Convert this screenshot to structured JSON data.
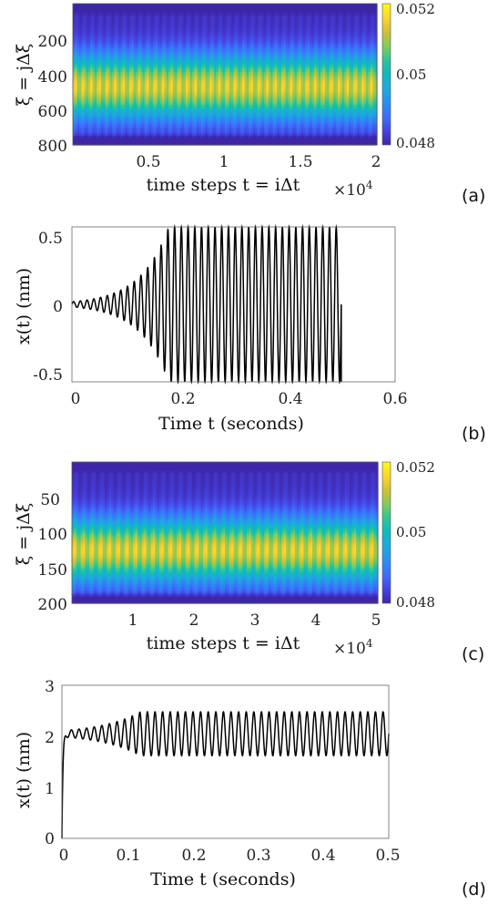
{
  "chart_data": [
    {
      "panel": "(a)",
      "type": "heatmap",
      "xlabel": "time steps t = iΔt",
      "ylabel": "ξ = jΔξ",
      "x_ticks": [
        "0.5",
        "1",
        "1.5",
        "2"
      ],
      "x_tick_values": [
        0.5,
        1,
        1.5,
        2
      ],
      "x_exponent": "×10",
      "x_exponent_power": "4",
      "xlim": [
        0,
        2
      ],
      "y_ticks": [
        "200",
        "400",
        "600",
        "800"
      ],
      "y_tick_values": [
        200,
        400,
        600,
        800
      ],
      "ylim": [
        0,
        800
      ],
      "colorbar_ticks": [
        "0.052",
        "0.05",
        "0.048"
      ],
      "colorbar_tick_values": [
        0.052,
        0.05,
        0.048
      ],
      "clim": [
        0.048,
        0.052
      ],
      "colormap": "parula",
      "stripe_count": 38,
      "profile_peak_y": 470,
      "grid": false
    },
    {
      "panel": "(b)",
      "type": "line",
      "xlabel": "Time t (seconds)",
      "ylabel": "x(t) (nm)",
      "x_ticks": [
        "0",
        "0.2",
        "0.4",
        "0.6"
      ],
      "x_tick_values": [
        0,
        0.2,
        0.4,
        0.6
      ],
      "xlim": [
        0,
        0.6
      ],
      "y_ticks": [
        "0.5",
        "0",
        "-0.5"
      ],
      "y_tick_values": [
        0.5,
        0,
        -0.5
      ],
      "ylim": [
        -0.6,
        0.6
      ],
      "t_end": 0.5,
      "oscillation_frequency": 80,
      "amplitude_start": 0.02,
      "amplitude_saturation": 0.6,
      "saturation_time": 0.18,
      "grid": false
    },
    {
      "panel": "(c)",
      "type": "heatmap",
      "xlabel": "time steps t = iΔt",
      "ylabel": "ξ = jΔξ",
      "x_ticks": [
        "1",
        "2",
        "3",
        "4",
        "5"
      ],
      "x_tick_values": [
        1,
        2,
        3,
        4,
        5
      ],
      "x_exponent": "×10",
      "x_exponent_power": "4",
      "xlim": [
        0,
        5
      ],
      "y_ticks": [
        "50",
        "100",
        "150",
        "200"
      ],
      "y_tick_values": [
        50,
        100,
        150,
        200
      ],
      "ylim": [
        0,
        200
      ],
      "colorbar_ticks": [
        "0.052",
        "0.05",
        "0.048"
      ],
      "colorbar_tick_values": [
        0.052,
        0.05,
        0.048
      ],
      "clim": [
        0.048,
        0.052
      ],
      "colormap": "parula",
      "stripe_count": 35,
      "profile_peak_y": 125,
      "grid": false
    },
    {
      "panel": "(d)",
      "type": "line",
      "xlabel": "Time t (seconds)",
      "ylabel": "x(t) (nm)",
      "x_ticks": [
        "0",
        "0.1",
        "0.2",
        "0.3",
        "0.4",
        "0.5"
      ],
      "x_tick_values": [
        0,
        0.1,
        0.2,
        0.3,
        0.4,
        0.5
      ],
      "xlim": [
        0,
        0.5
      ],
      "y_ticks": [
        "3",
        "2",
        "1",
        "0"
      ],
      "y_tick_values": [
        3,
        2,
        1,
        0
      ],
      "ylim": [
        0,
        3
      ],
      "t_end": 0.5,
      "mean_level": 2.05,
      "oscillation_frequency": 86,
      "amplitude_start": 0.06,
      "amplitude_saturation": 0.43,
      "saturation_time": 0.12,
      "grid": false
    }
  ]
}
